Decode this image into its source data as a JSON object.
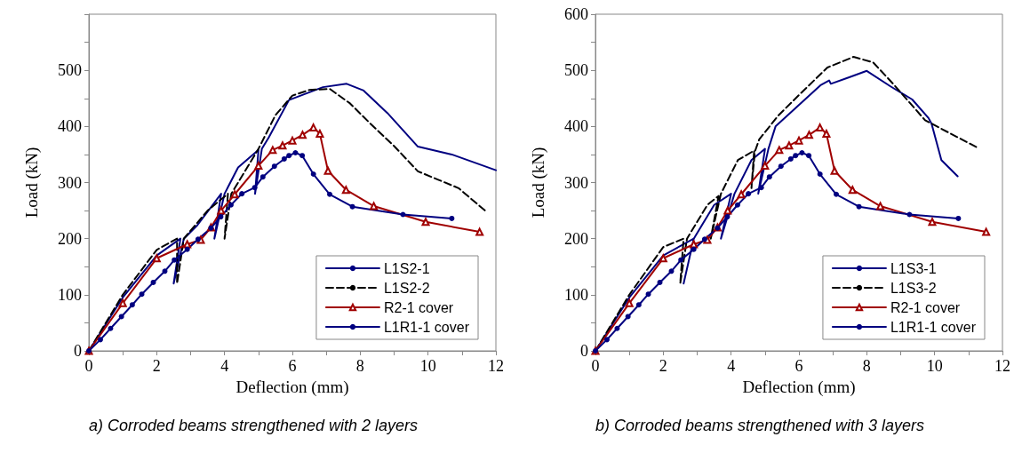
{
  "chart_data": [
    {
      "type": "line",
      "xlabel": "Deflection (mm)",
      "ylabel": "Load (kN)",
      "annotations": [
        "a) Corroded beams strengthened with 2 layers"
      ],
      "xlim": [
        0,
        12
      ],
      "ylim": [
        0,
        600
      ],
      "xticks": [
        0,
        {
          "value": 1,
          "label": null
        },
        2,
        {
          "value": 3,
          "label": null
        },
        4,
        {
          "value": 5,
          "label": null
        },
        6,
        {
          "value": 7,
          "label": null
        },
        8,
        {
          "value": 9,
          "label": null
        },
        10,
        {
          "value": 11,
          "label": null
        },
        12
      ],
      "yticks": [
        0,
        {
          "value": 50,
          "label": null
        },
        100,
        {
          "value": 150,
          "label": null
        },
        200,
        {
          "value": 250,
          "label": null
        },
        300,
        {
          "value": 350,
          "label": null
        },
        400,
        {
          "value": 450,
          "label": null
        },
        500,
        {
          "value": 550,
          "label": null
        },
        {
          "value": 600,
          "label": null
        }
      ],
      "grid": false,
      "legend": "bottom right",
      "series": [
        {
          "name": "L1S2-1",
          "color": "#000080",
          "line_style": "solid",
          "marker": "none",
          "x": [
            0,
            1,
            2,
            2.7,
            2.5,
            2.8,
            3.2,
            3.9,
            3.7,
            4.0,
            4.4,
            5.0,
            4.9,
            5.1,
            5.3,
            5.9,
            6.9,
            7.6,
            8.1,
            8.8,
            9.7,
            10.7,
            12
          ],
          "values": [
            0,
            95,
            170,
            200,
            120,
            200,
            224,
            280,
            200,
            280,
            327,
            358,
            280,
            360,
            380,
            447,
            470,
            476,
            464,
            424,
            364,
            350,
            322
          ]
        },
        {
          "name": "L1S2-2",
          "color": "#000000",
          "line_style": "dashed",
          "marker": "none",
          "x": [
            0,
            1,
            2,
            2.6,
            2.6,
            2.8,
            3.5,
            4.1,
            4.0,
            4.2,
            4.7,
            5.0,
            5.5,
            6.0,
            6.5,
            7.1,
            7.7,
            8.3,
            9.0,
            9.7,
            10.3,
            10.9,
            11.7
          ],
          "values": [
            0,
            100,
            180,
            200,
            120,
            200,
            250,
            280,
            200,
            280,
            330,
            360,
            420,
            455,
            465,
            467,
            441,
            405,
            365,
            320,
            305,
            290,
            249
          ]
        },
        {
          "name": "R2-1 cover",
          "color": "#a00000",
          "line_style": "solid",
          "marker": "triangle",
          "x": [
            0,
            1,
            2,
            2.9,
            3.3,
            3.6,
            3.9,
            4.3,
            5.0,
            5.42,
            5.71,
            6.0,
            6.3,
            6.62,
            6.81,
            7.05,
            7.58,
            8.4,
            9.93,
            11.52
          ],
          "values": [
            0,
            85,
            165,
            190,
            198,
            220,
            250,
            279,
            330,
            358,
            366,
            375,
            385,
            398,
            387,
            321,
            287,
            258,
            230,
            212
          ]
        },
        {
          "name": "L1R1-1 cover",
          "color": "#000080",
          "line_style": "solid",
          "marker": "circle",
          "x": [
            0,
            0.34,
            0.64,
            0.96,
            1.28,
            1.56,
            1.9,
            2.24,
            2.52,
            2.9,
            3.22,
            3.6,
            3.89,
            4.19,
            4.51,
            4.89,
            5.13,
            5.47,
            5.76,
            5.9,
            6.09,
            6.29,
            6.62,
            7.1,
            7.77,
            9.26,
            10.7
          ],
          "values": [
            0,
            20,
            40,
            61,
            82,
            101,
            122,
            142,
            162,
            181,
            199,
            219,
            239,
            260,
            280,
            291,
            310,
            329,
            342,
            348,
            353,
            348,
            315,
            279,
            257,
            243,
            236
          ]
        }
      ]
    },
    {
      "type": "line",
      "xlabel": "Deflection (mm)",
      "ylabel": "Load (kN)",
      "annotations": [
        "b) Corroded beams strengthened with 3 layers"
      ],
      "xlim": [
        0,
        12
      ],
      "ylim": [
        0,
        600
      ],
      "xticks": [
        0,
        {
          "value": 1,
          "label": null
        },
        2,
        {
          "value": 3,
          "label": null
        },
        4,
        {
          "value": 5,
          "label": null
        },
        6,
        {
          "value": 7,
          "label": null
        },
        8,
        {
          "value": 9,
          "label": null
        },
        10,
        {
          "value": 11,
          "label": null
        },
        12
      ],
      "yticks": [
        0,
        {
          "value": 50,
          "label": null
        },
        100,
        {
          "value": 150,
          "label": null
        },
        200,
        {
          "value": 250,
          "label": null
        },
        300,
        {
          "value": 350,
          "label": null
        },
        400,
        {
          "value": 450,
          "label": null
        },
        500,
        {
          "value": 550,
          "label": null
        },
        600
      ],
      "grid": false,
      "legend": "bottom right",
      "series": [
        {
          "name": "L1S3-1",
          "color": "#000080",
          "line_style": "solid",
          "marker": "none",
          "x": [
            0,
            1,
            2,
            2.9,
            2.6,
            2.9,
            3.5,
            4.0,
            3.7,
            4.1,
            4.6,
            5.0,
            4.8,
            5.1,
            5.31,
            6.07,
            6.65,
            6.89,
            6.94,
            7.5,
            8.0,
            8.71,
            9.34,
            9.82,
            9.91,
            10.2,
            10.68
          ],
          "values": [
            0,
            95,
            170,
            200,
            120,
            200,
            260,
            280,
            200,
            280,
            340,
            360,
            280,
            360,
            400,
            442,
            474,
            482,
            476,
            488,
            499,
            471,
            448,
            415,
            405,
            340,
            311
          ]
        },
        {
          "name": "L1S3-2",
          "color": "#000000",
          "line_style": "dashed",
          "marker": "none",
          "x": [
            0,
            1,
            2,
            2.6,
            2.5,
            2.7,
            3.3,
            3.63,
            3.4,
            3.7,
            4.2,
            4.68,
            4.6,
            4.7,
            4.83,
            5.4,
            6.07,
            6.84,
            7.61,
            8.19,
            8.76,
            9.72,
            11.3
          ],
          "values": [
            0,
            100,
            185,
            200,
            120,
            200,
            260,
            276,
            200,
            280,
            340,
            357,
            290,
            355,
            377,
            420,
            460,
            505,
            524,
            514,
            477,
            411,
            361
          ]
        },
        {
          "name": "R2-1 cover",
          "color": "#a00000",
          "line_style": "solid",
          "marker": "triangle",
          "x": [
            0,
            1,
            2,
            2.9,
            3.3,
            3.6,
            3.9,
            4.3,
            5.0,
            5.42,
            5.71,
            6.0,
            6.3,
            6.62,
            6.81,
            7.05,
            7.58,
            8.4,
            9.93,
            11.52
          ],
          "values": [
            0,
            85,
            165,
            190,
            198,
            220,
            250,
            279,
            330,
            358,
            366,
            375,
            385,
            398,
            387,
            321,
            287,
            258,
            230,
            212
          ]
        },
        {
          "name": "L1R1-1 cover",
          "color": "#000080",
          "line_style": "solid",
          "marker": "circle",
          "x": [
            0,
            0.34,
            0.64,
            0.96,
            1.28,
            1.56,
            1.9,
            2.24,
            2.52,
            2.9,
            3.22,
            3.6,
            3.89,
            4.19,
            4.51,
            4.89,
            5.13,
            5.47,
            5.76,
            5.9,
            6.09,
            6.29,
            6.62,
            7.1,
            7.77,
            9.26,
            10.7
          ],
          "values": [
            0,
            20,
            40,
            61,
            82,
            101,
            122,
            142,
            162,
            181,
            199,
            219,
            239,
            260,
            280,
            291,
            310,
            329,
            342,
            348,
            353,
            348,
            315,
            279,
            257,
            243,
            236
          ]
        }
      ]
    }
  ]
}
